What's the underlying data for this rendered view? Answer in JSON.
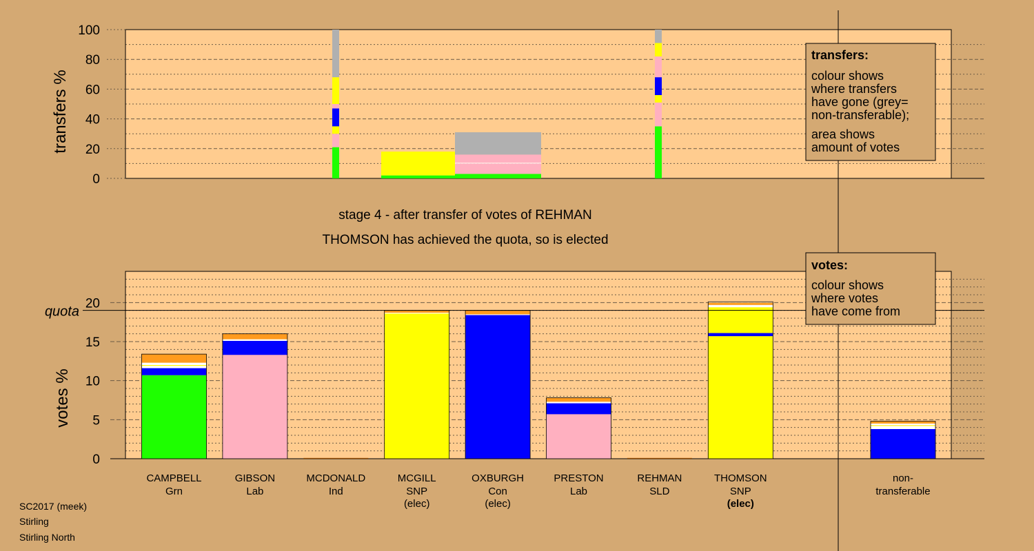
{
  "title": {
    "stage": "stage 4 - after transfer of votes of REHMAN",
    "elected": "THOMSON has achieved the quota, so is elected"
  },
  "footer": [
    "SC2017 (meek)",
    "Stirling",
    "Stirling North"
  ],
  "legend_transfers": {
    "heading": "transfers:",
    "lines": [
      "colour shows",
      "where transfers",
      "have gone (grey=",
      "non-transferable);",
      "area shows",
      "amount of votes"
    ]
  },
  "legend_votes": {
    "heading": "votes:",
    "lines": [
      "colour shows",
      "where votes",
      "have come from"
    ]
  },
  "colors": {
    "background": "#D4A973",
    "panel": "#FFCC8F",
    "green": "#1EFF00",
    "pink": "#FFB0C0",
    "blue": "#0000FF",
    "yellow": "#FFFF00",
    "orange": "#FF9B1E",
    "grey": "#B0B0B0",
    "white": "#FFFFFF",
    "dark": "#A05000"
  },
  "chart_data": [
    {
      "type": "bar",
      "name": "transfers",
      "ylabel": "transfers %",
      "ylim": [
        0,
        100
      ],
      "yticks": [
        0,
        20,
        40,
        60,
        80,
        100
      ],
      "transfer_columns": [
        {
          "position": 0,
          "segments": [
            {
              "color": "green",
              "value": 21
            },
            {
              "color": "pink",
              "value": 9
            },
            {
              "color": "yellow",
              "value": 5
            },
            {
              "color": "blue",
              "value": 12
            },
            {
              "color": "pink",
              "value": 3
            },
            {
              "color": "yellow",
              "value": 18
            },
            {
              "color": "grey",
              "value": 32
            }
          ]
        },
        {
          "position": 1,
          "segments": [
            {
              "color": "green",
              "value": 35
            },
            {
              "color": "pink",
              "value": 16
            },
            {
              "color": "yellow",
              "value": 5
            },
            {
              "color": "blue",
              "value": 12
            },
            {
              "color": "pink",
              "value": 14
            },
            {
              "color": "yellow",
              "value": 9
            },
            {
              "color": "grey",
              "value": 9
            }
          ]
        }
      ],
      "transfer_blocks": [
        {
          "segments": [
            {
              "color": "green",
              "value": 2
            },
            {
              "color": "yellow",
              "value": 16
            }
          ]
        },
        {
          "segments": [
            {
              "color": "green",
              "value": 3
            },
            {
              "color": "pink",
              "value": 7
            },
            {
              "color": "white",
              "value": 0.5
            },
            {
              "color": "pink",
              "value": 5.5
            },
            {
              "color": "grey",
              "value": 15
            }
          ]
        }
      ]
    },
    {
      "type": "bar",
      "name": "votes",
      "ylabel": "votes %",
      "ylim": [
        0,
        24
      ],
      "yticks": [
        0,
        5,
        10,
        15,
        20
      ],
      "quota": 19.0,
      "quota_label": "quota",
      "candidates": [
        {
          "name": "CAMPBELL",
          "party": "Grn",
          "note": "",
          "note_bold": false,
          "segments": [
            {
              "color": "green",
              "value": 10.7
            },
            {
              "color": "blue",
              "value": 0.9
            },
            {
              "color": "white",
              "value": 0.3
            },
            {
              "color": "yellow",
              "value": 0.1
            },
            {
              "color": "white",
              "value": 0.3
            },
            {
              "color": "orange",
              "value": 1.1
            }
          ]
        },
        {
          "name": "GIBSON",
          "party": "Lab",
          "note": "",
          "note_bold": false,
          "segments": [
            {
              "color": "pink",
              "value": 13.3
            },
            {
              "color": "blue",
              "value": 1.8
            },
            {
              "color": "white",
              "value": 0.2
            },
            {
              "color": "orange",
              "value": 0.7
            }
          ]
        },
        {
          "name": "MCDONALD",
          "party": "Ind",
          "note": "",
          "note_bold": false,
          "segments": [
            {
              "color": "dark",
              "value": 0.1
            }
          ]
        },
        {
          "name": "MCGILL",
          "party": "SNP",
          "note": "(elec)",
          "note_bold": false,
          "segments": [
            {
              "color": "yellow",
              "value": 18.6
            },
            {
              "color": "white",
              "value": 0.1
            },
            {
              "color": "orange",
              "value": 0.3
            }
          ]
        },
        {
          "name": "OXBURGH",
          "party": "Con",
          "note": "(elec)",
          "note_bold": false,
          "segments": [
            {
              "color": "blue",
              "value": 18.4
            },
            {
              "color": "white",
              "value": 0.1
            },
            {
              "color": "orange",
              "value": 0.5
            }
          ]
        },
        {
          "name": "PRESTON",
          "party": "Lab",
          "note": "",
          "note_bold": false,
          "segments": [
            {
              "color": "pink",
              "value": 5.7
            },
            {
              "color": "blue",
              "value": 1.4
            },
            {
              "color": "white",
              "value": 0.2
            },
            {
              "color": "orange",
              "value": 0.5
            }
          ]
        },
        {
          "name": "REHMAN",
          "party": "SLD",
          "note": "",
          "note_bold": false,
          "segments": [
            {
              "color": "dark",
              "value": 0.1
            }
          ]
        },
        {
          "name": "THOMSON",
          "party": "SNP",
          "note": "(elec)",
          "note_bold": true,
          "segments": [
            {
              "color": "yellow",
              "value": 15.7
            },
            {
              "color": "blue",
              "value": 0.4
            },
            {
              "color": "yellow",
              "value": 3.3
            },
            {
              "color": "white",
              "value": 0.3
            },
            {
              "color": "orange",
              "value": 0.3
            },
            {
              "color": "white",
              "value": 0.1
            }
          ]
        }
      ],
      "nontransferable": {
        "label": [
          "non-",
          "transferable"
        ],
        "segments": [
          {
            "color": "blue",
            "value": 3.8
          },
          {
            "color": "white",
            "value": 0.4
          },
          {
            "color": "yellow",
            "value": 0.1
          },
          {
            "color": "white",
            "value": 0.2
          },
          {
            "color": "orange",
            "value": 0.3
          }
        ]
      }
    }
  ]
}
